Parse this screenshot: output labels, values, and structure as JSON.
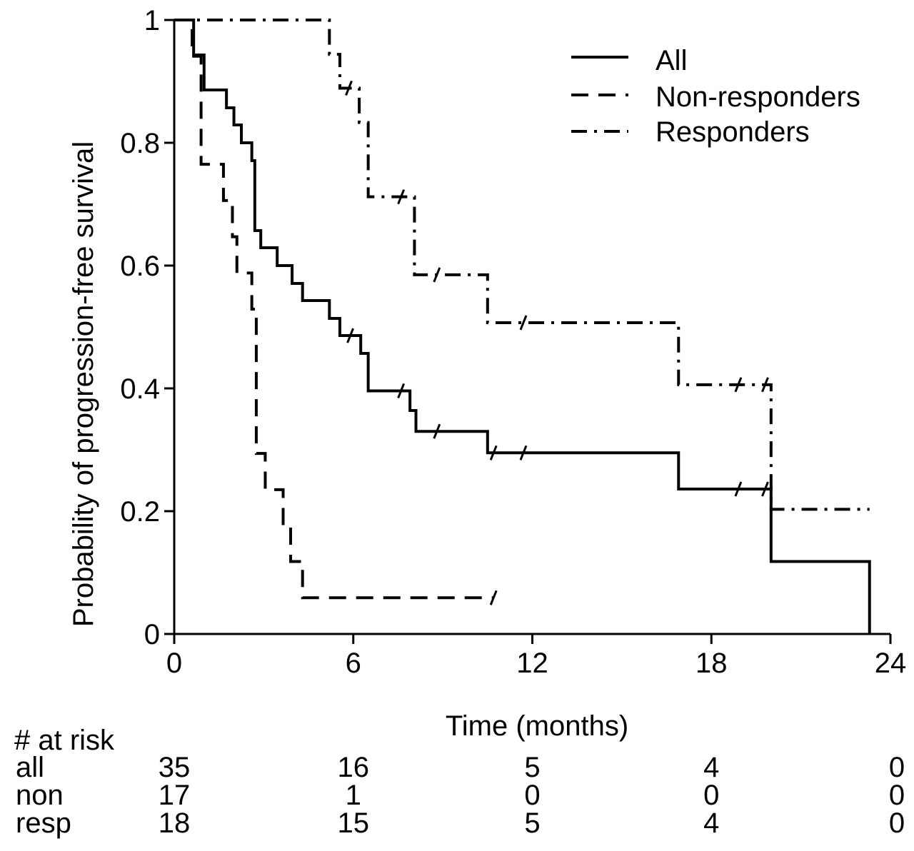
{
  "chart_data": {
    "type": "line",
    "subtype": "kaplan-meier step curve",
    "title": "",
    "xlabel": "Time (months)",
    "ylabel": "Probability of progression-free survival",
    "xlim": [
      0,
      24
    ],
    "ylim": [
      0,
      1
    ],
    "xticks": [
      "0",
      "6",
      "12",
      "18",
      "24"
    ],
    "xtick_values": [
      0,
      6,
      12,
      18,
      24
    ],
    "yticks": [
      "0",
      "0.2",
      "0.4",
      "0.6",
      "0.8",
      "1"
    ],
    "ytick_values": [
      0,
      0.2,
      0.4,
      0.6,
      0.8,
      1
    ],
    "legend_position": "top-right",
    "series": [
      {
        "name": "All",
        "style": "solid",
        "steps": [
          [
            0,
            1
          ],
          [
            0.65,
            0.943
          ],
          [
            1.0,
            0.886
          ],
          [
            1.75,
            0.857
          ],
          [
            2.0,
            0.829
          ],
          [
            2.25,
            0.8
          ],
          [
            2.6,
            0.771
          ],
          [
            2.7,
            0.657
          ],
          [
            2.9,
            0.629
          ],
          [
            3.45,
            0.6
          ],
          [
            3.95,
            0.571
          ],
          [
            4.3,
            0.543
          ],
          [
            5.2,
            0.514
          ],
          [
            5.55,
            0.486
          ],
          [
            6.25,
            0.457
          ],
          [
            6.5,
            0.396
          ],
          [
            7.9,
            0.364
          ],
          [
            8.1,
            0.33
          ],
          [
            10.5,
            0.295
          ],
          [
            16.9,
            0.236
          ],
          [
            20.0,
            0.118
          ],
          [
            23.3,
            0
          ]
        ],
        "censored": [
          [
            5.9,
            0.486
          ],
          [
            7.6,
            0.396
          ],
          [
            8.8,
            0.33
          ],
          [
            10.7,
            0.295
          ],
          [
            11.7,
            0.295
          ],
          [
            18.9,
            0.236
          ],
          [
            19.8,
            0.236
          ]
        ]
      },
      {
        "name": "Non-responders",
        "style": "dashed",
        "steps": [
          [
            0,
            1
          ],
          [
            0.6,
            0.941
          ],
          [
            0.9,
            0.765
          ],
          [
            1.65,
            0.706
          ],
          [
            1.95,
            0.647
          ],
          [
            2.1,
            0.588
          ],
          [
            2.6,
            0.529
          ],
          [
            2.75,
            0.294
          ],
          [
            3.05,
            0.235
          ],
          [
            3.65,
            0.176
          ],
          [
            3.9,
            0.118
          ],
          [
            4.3,
            0.059
          ]
        ],
        "end_x": 10.7,
        "censored": [
          [
            10.7,
            0.059
          ]
        ]
      },
      {
        "name": "Responders",
        "style": "dash-dot",
        "steps": [
          [
            0,
            1
          ],
          [
            5.2,
            0.944
          ],
          [
            5.55,
            0.889
          ],
          [
            6.2,
            0.833
          ],
          [
            6.5,
            0.712
          ],
          [
            8.05,
            0.585
          ],
          [
            10.5,
            0.507
          ],
          [
            16.9,
            0.406
          ],
          [
            20.0,
            0.203
          ]
        ],
        "end_x": 23.3,
        "censored": [
          [
            5.85,
            0.889
          ],
          [
            7.6,
            0.712
          ],
          [
            8.8,
            0.585
          ],
          [
            11.7,
            0.507
          ],
          [
            18.9,
            0.406
          ],
          [
            19.8,
            0.406
          ]
        ]
      }
    ],
    "at_risk_table": {
      "title": "# at risk",
      "rows": [
        {
          "label": "all",
          "values": [
            "35",
            "16",
            "5",
            "4",
            "0"
          ]
        },
        {
          "label": "non",
          "values": [
            "17",
            "1",
            "0",
            "0",
            "0"
          ]
        },
        {
          "label": "resp",
          "values": [
            "18",
            "15",
            "5",
            "4",
            "0"
          ]
        }
      ]
    }
  }
}
